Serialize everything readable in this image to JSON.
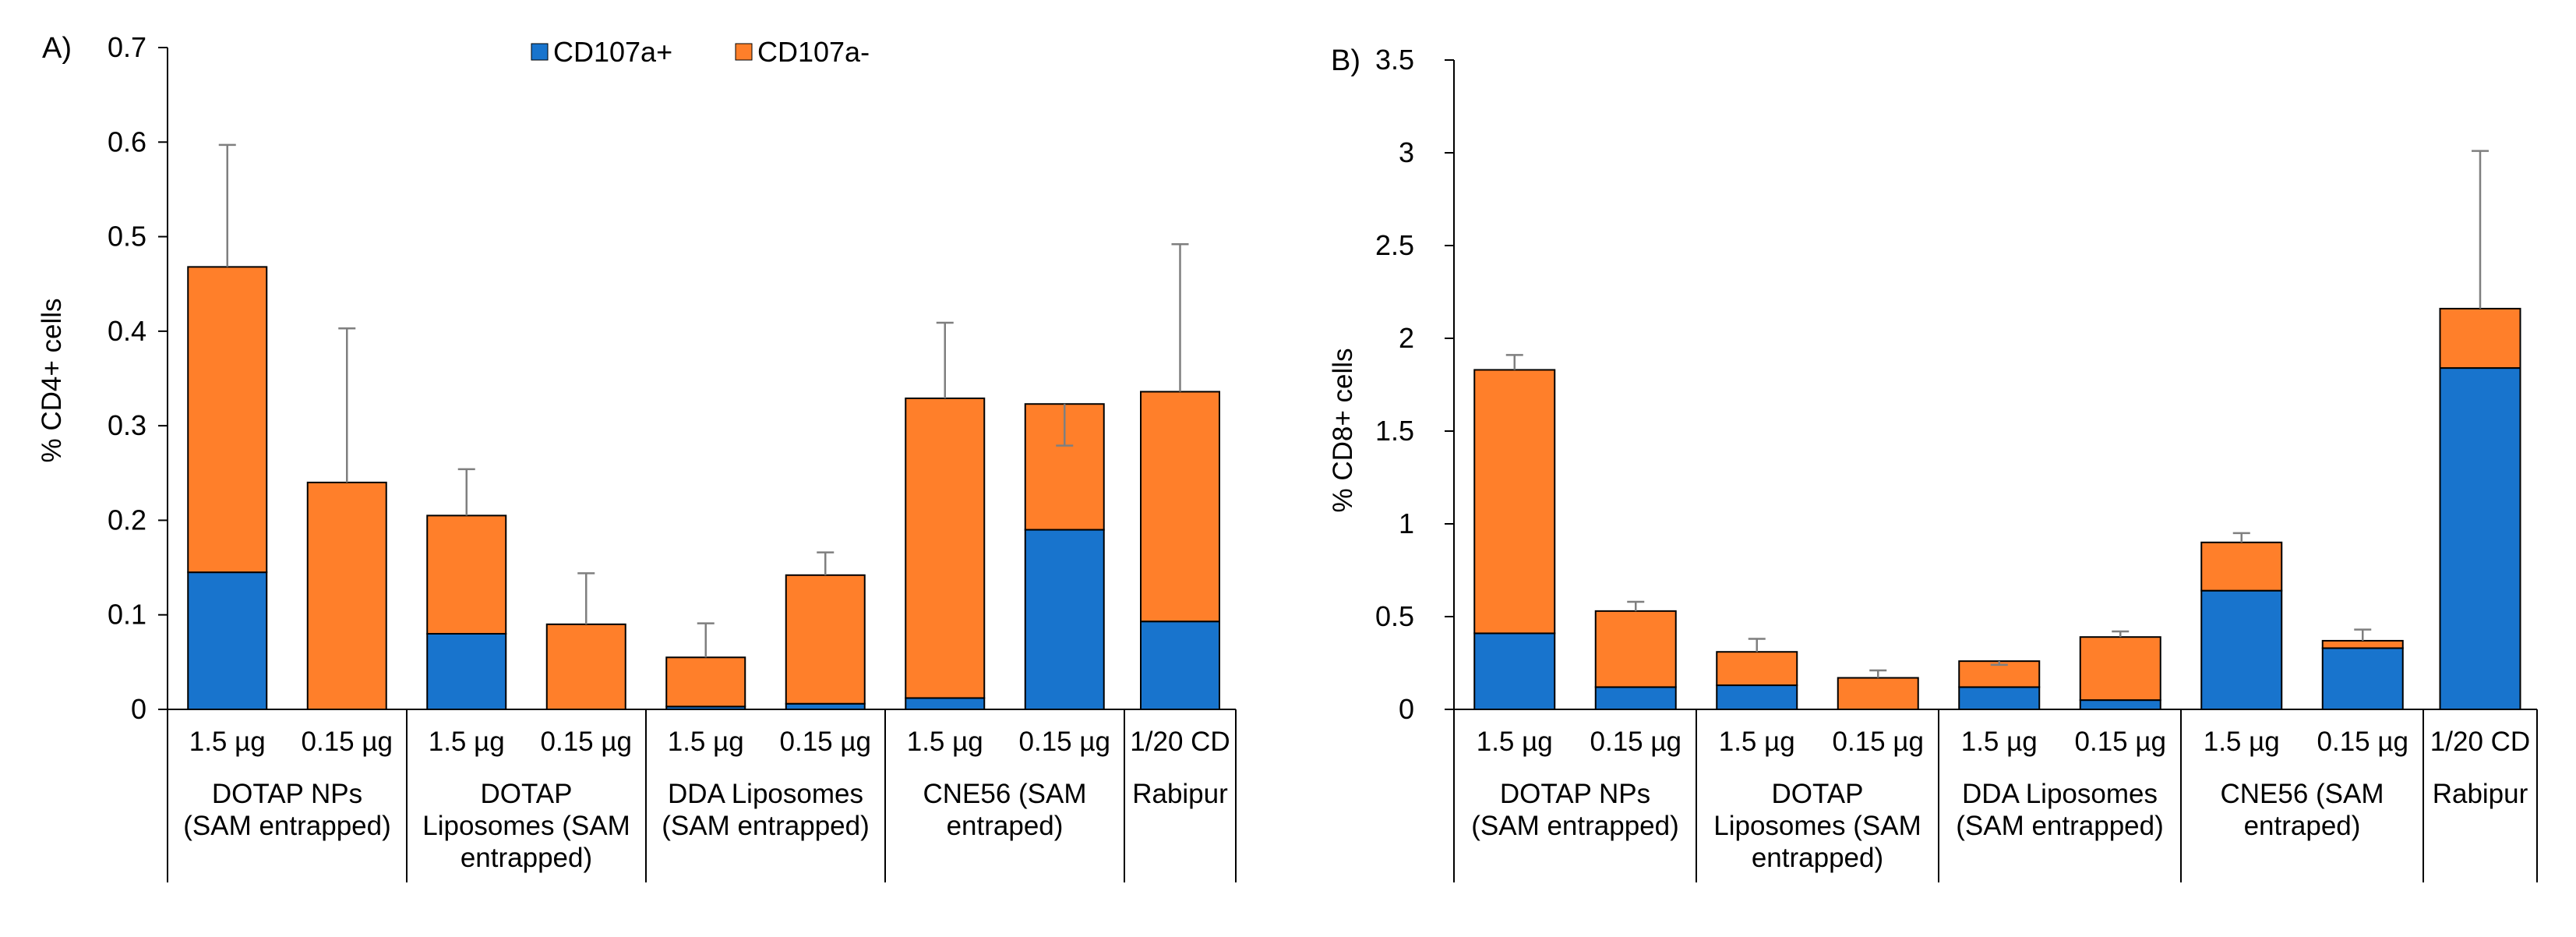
{
  "legend": [
    {
      "label": "CD107a+",
      "color": "#1874CD"
    },
    {
      "label": "CD107a-",
      "color": "#FF7F2A"
    }
  ],
  "chart_data": [
    {
      "type": "bar",
      "stacked": true,
      "panel_label": "A)",
      "ylabel": "% CD4+ cells",
      "ylim": [
        0,
        0.7
      ],
      "yticks": [
        "0",
        "0.1",
        "0.2",
        "0.3",
        "0.4",
        "0.5",
        "0.6",
        "0.7"
      ],
      "categories": [
        "1.5 µg",
        "0.15 µg",
        "1.5 µg",
        "0.15 µg",
        "1.5 µg",
        "0.15 µg",
        "1.5 µg",
        "0.15 µg",
        "1/20 CD"
      ],
      "groups": [
        {
          "lines": [
            "DOTAP NPs",
            "(SAM entrapped)"
          ],
          "span": 2
        },
        {
          "lines": [
            "DOTAP",
            "Liposomes (SAM",
            "entrapped)"
          ],
          "span": 2
        },
        {
          "lines": [
            "DDA Liposomes",
            "(SAM entrapped)"
          ],
          "span": 2
        },
        {
          "lines": [
            "CNE56 (SAM",
            "entraped)"
          ],
          "span": 2
        },
        {
          "lines": [
            "Rabipur"
          ],
          "span": 1
        }
      ],
      "series": [
        {
          "name": "CD107a+",
          "values": [
            0.145,
            0,
            0.08,
            0,
            0.003,
            0.006,
            0.012,
            0.19,
            0.093
          ]
        },
        {
          "name": "CD107a-",
          "values": [
            0.323,
            0.24,
            0.125,
            0.09,
            0.052,
            0.136,
            0.317,
            0.133,
            0.243
          ]
        }
      ],
      "error_tops": [
        0.597,
        0.403,
        0.254,
        0.144,
        0.091,
        0.166,
        0.409,
        0.279,
        0.492
      ]
    },
    {
      "type": "bar",
      "stacked": true,
      "panel_label": "B)",
      "ylabel": "% CD8+ cells",
      "ylim": [
        0,
        3.5
      ],
      "yticks": [
        "0",
        "0.5",
        "1",
        "1.5",
        "2",
        "2.5",
        "3",
        "3.5"
      ],
      "categories": [
        "1.5 µg",
        "0.15 µg",
        "1.5 µg",
        "0.15 µg",
        "1.5 µg",
        "0.15 µg",
        "1.5 µg",
        "0.15 µg",
        "1/20 CD"
      ],
      "groups": [
        {
          "lines": [
            "DOTAP NPs",
            "(SAM entrapped)"
          ],
          "span": 2
        },
        {
          "lines": [
            "DOTAP",
            "Liposomes (SAM",
            "entrapped)"
          ],
          "span": 2
        },
        {
          "lines": [
            "DDA Liposomes",
            "(SAM entrapped)"
          ],
          "span": 2
        },
        {
          "lines": [
            "CNE56 (SAM",
            "entraped)"
          ],
          "span": 2
        },
        {
          "lines": [
            "Rabipur"
          ],
          "span": 1
        }
      ],
      "series": [
        {
          "name": "CD107a+",
          "values": [
            0.41,
            0.12,
            0.13,
            0,
            0.12,
            0.05,
            0.64,
            0.33,
            1.84
          ]
        },
        {
          "name": "CD107a-",
          "values": [
            1.42,
            0.41,
            0.18,
            0.17,
            0.14,
            0.34,
            0.26,
            0.04,
            0.32
          ]
        }
      ],
      "error_tops": [
        1.91,
        0.58,
        0.38,
        0.21,
        0.24,
        0.42,
        0.95,
        0.43,
        3.01
      ]
    }
  ]
}
